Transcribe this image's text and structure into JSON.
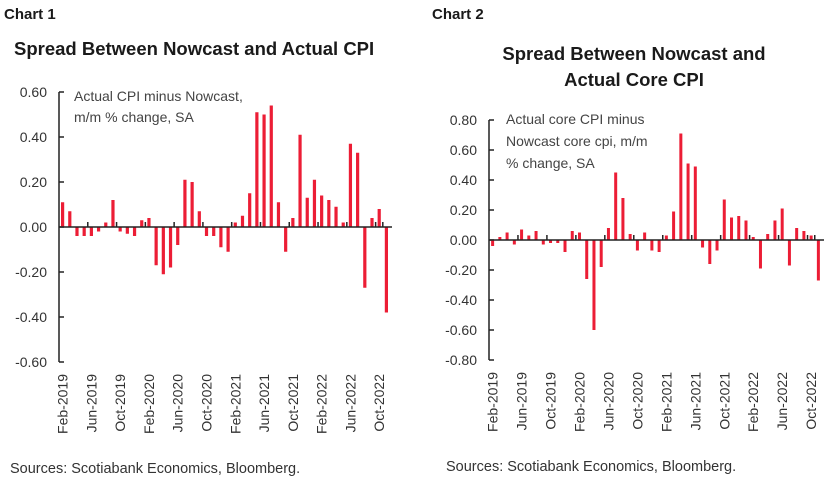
{
  "chart_data": [
    {
      "type": "bar",
      "label": "Chart 1",
      "title": "Spread Between Nowcast and Actual CPI",
      "annotation": [
        "Actual CPI minus Nowcast,",
        "m/m % change, SA"
      ],
      "ylabel": "",
      "xlabel": "",
      "ylim": [
        -0.6,
        0.6
      ],
      "yticks": [
        0.6,
        0.4,
        0.2,
        0.0,
        -0.2,
        -0.4,
        -0.6
      ],
      "ytick_labels": [
        "0.60",
        "0.40",
        "0.20",
        "0.00",
        "-0.20",
        "-0.40",
        "-0.60"
      ],
      "xtick_labels": [
        "Feb-2019",
        "Jun-2019",
        "Oct-2019",
        "Feb-2020",
        "Jun-2020",
        "Oct-2020",
        "Feb-2021",
        "Jun-2021",
        "Oct-2021",
        "Feb-2022",
        "Jun-2022",
        "Oct-2022"
      ],
      "categories": [
        "Feb-2019",
        "Mar-2019",
        "Apr-2019",
        "May-2019",
        "Jun-2019",
        "Jul-2019",
        "Aug-2019",
        "Sep-2019",
        "Oct-2019",
        "Nov-2019",
        "Dec-2019",
        "Jan-2020",
        "Feb-2020",
        "Mar-2020",
        "Apr-2020",
        "May-2020",
        "Jun-2020",
        "Jul-2020",
        "Aug-2020",
        "Sep-2020",
        "Oct-2020",
        "Nov-2020",
        "Dec-2020",
        "Jan-2021",
        "Feb-2021",
        "Mar-2021",
        "Apr-2021",
        "May-2021",
        "Jun-2021",
        "Jul-2021",
        "Aug-2021",
        "Sep-2021",
        "Oct-2021",
        "Nov-2021",
        "Dec-2021",
        "Jan-2022",
        "Feb-2022",
        "Mar-2022",
        "Apr-2022",
        "May-2022",
        "Jun-2022",
        "Jul-2022",
        "Aug-2022",
        "Sep-2022",
        "Oct-2022",
        "Nov-2022"
      ],
      "values": [
        0.11,
        0.07,
        -0.04,
        -0.04,
        -0.04,
        -0.02,
        0.02,
        0.12,
        -0.02,
        -0.03,
        -0.04,
        0.03,
        0.04,
        -0.17,
        -0.21,
        -0.18,
        -0.08,
        0.21,
        0.2,
        0.07,
        -0.04,
        -0.04,
        -0.09,
        -0.11,
        0.02,
        0.05,
        0.15,
        0.51,
        0.5,
        0.54,
        0.11,
        -0.11,
        0.04,
        0.41,
        0.13,
        0.21,
        0.14,
        0.12,
        0.09,
        0.02,
        0.37,
        0.33,
        -0.27,
        0.04,
        0.08,
        -0.38
      ],
      "bar_color": "#ec1d35",
      "grid": false,
      "source": "Sources: Scotiabank Economics, Bloomberg."
    },
    {
      "type": "bar",
      "label": "Chart 2",
      "title": [
        "Spread Between Nowcast and",
        "Actual Core CPI"
      ],
      "annotation": [
        "Actual core CPI minus",
        "Nowcast core cpi, m/m",
        "% change, SA"
      ],
      "ylabel": "",
      "xlabel": "",
      "ylim": [
        -0.8,
        0.8
      ],
      "yticks": [
        0.8,
        0.6,
        0.4,
        0.2,
        0.0,
        -0.2,
        -0.4,
        -0.6,
        -0.8
      ],
      "ytick_labels": [
        "0.80",
        "0.60",
        "0.40",
        "0.20",
        "0.00",
        "-0.20",
        "-0.40",
        "-0.60",
        "-0.80"
      ],
      "xtick_labels": [
        "Feb-2019",
        "Jun-2019",
        "Oct-2019",
        "Feb-2020",
        "Jun-2020",
        "Oct-2020",
        "Feb-2021",
        "Jun-2021",
        "Oct-2021",
        "Feb-2022",
        "Jun-2022",
        "Oct-2022"
      ],
      "categories": [
        "Feb-2019",
        "Mar-2019",
        "Apr-2019",
        "May-2019",
        "Jun-2019",
        "Jul-2019",
        "Aug-2019",
        "Sep-2019",
        "Oct-2019",
        "Nov-2019",
        "Dec-2019",
        "Jan-2020",
        "Feb-2020",
        "Mar-2020",
        "Apr-2020",
        "May-2020",
        "Jun-2020",
        "Jul-2020",
        "Aug-2020",
        "Sep-2020",
        "Oct-2020",
        "Nov-2020",
        "Dec-2020",
        "Jan-2021",
        "Feb-2021",
        "Mar-2021",
        "Apr-2021",
        "May-2021",
        "Jun-2021",
        "Jul-2021",
        "Aug-2021",
        "Sep-2021",
        "Oct-2021",
        "Nov-2021",
        "Dec-2021",
        "Jan-2022",
        "Feb-2022",
        "Mar-2022",
        "Apr-2022",
        "May-2022",
        "Jun-2022",
        "Jul-2022",
        "Aug-2022",
        "Sep-2022",
        "Oct-2022",
        "Nov-2022"
      ],
      "values": [
        -0.04,
        0.02,
        0.05,
        -0.03,
        0.07,
        0.03,
        0.06,
        -0.03,
        -0.02,
        -0.02,
        -0.08,
        0.06,
        0.05,
        -0.26,
        -0.6,
        -0.18,
        0.08,
        0.45,
        0.28,
        0.04,
        -0.07,
        0.05,
        -0.07,
        -0.08,
        0.03,
        0.19,
        0.71,
        0.51,
        0.49,
        -0.05,
        -0.16,
        -0.07,
        0.27,
        0.15,
        0.16,
        0.13,
        0.02,
        -0.19,
        0.04,
        0.13,
        0.21,
        -0.17,
        0.08,
        0.06,
        0.03,
        -0.27
      ],
      "bar_color": "#ec1d35",
      "grid": false,
      "source": "Sources: Scotiabank Economics, Bloomberg."
    }
  ]
}
